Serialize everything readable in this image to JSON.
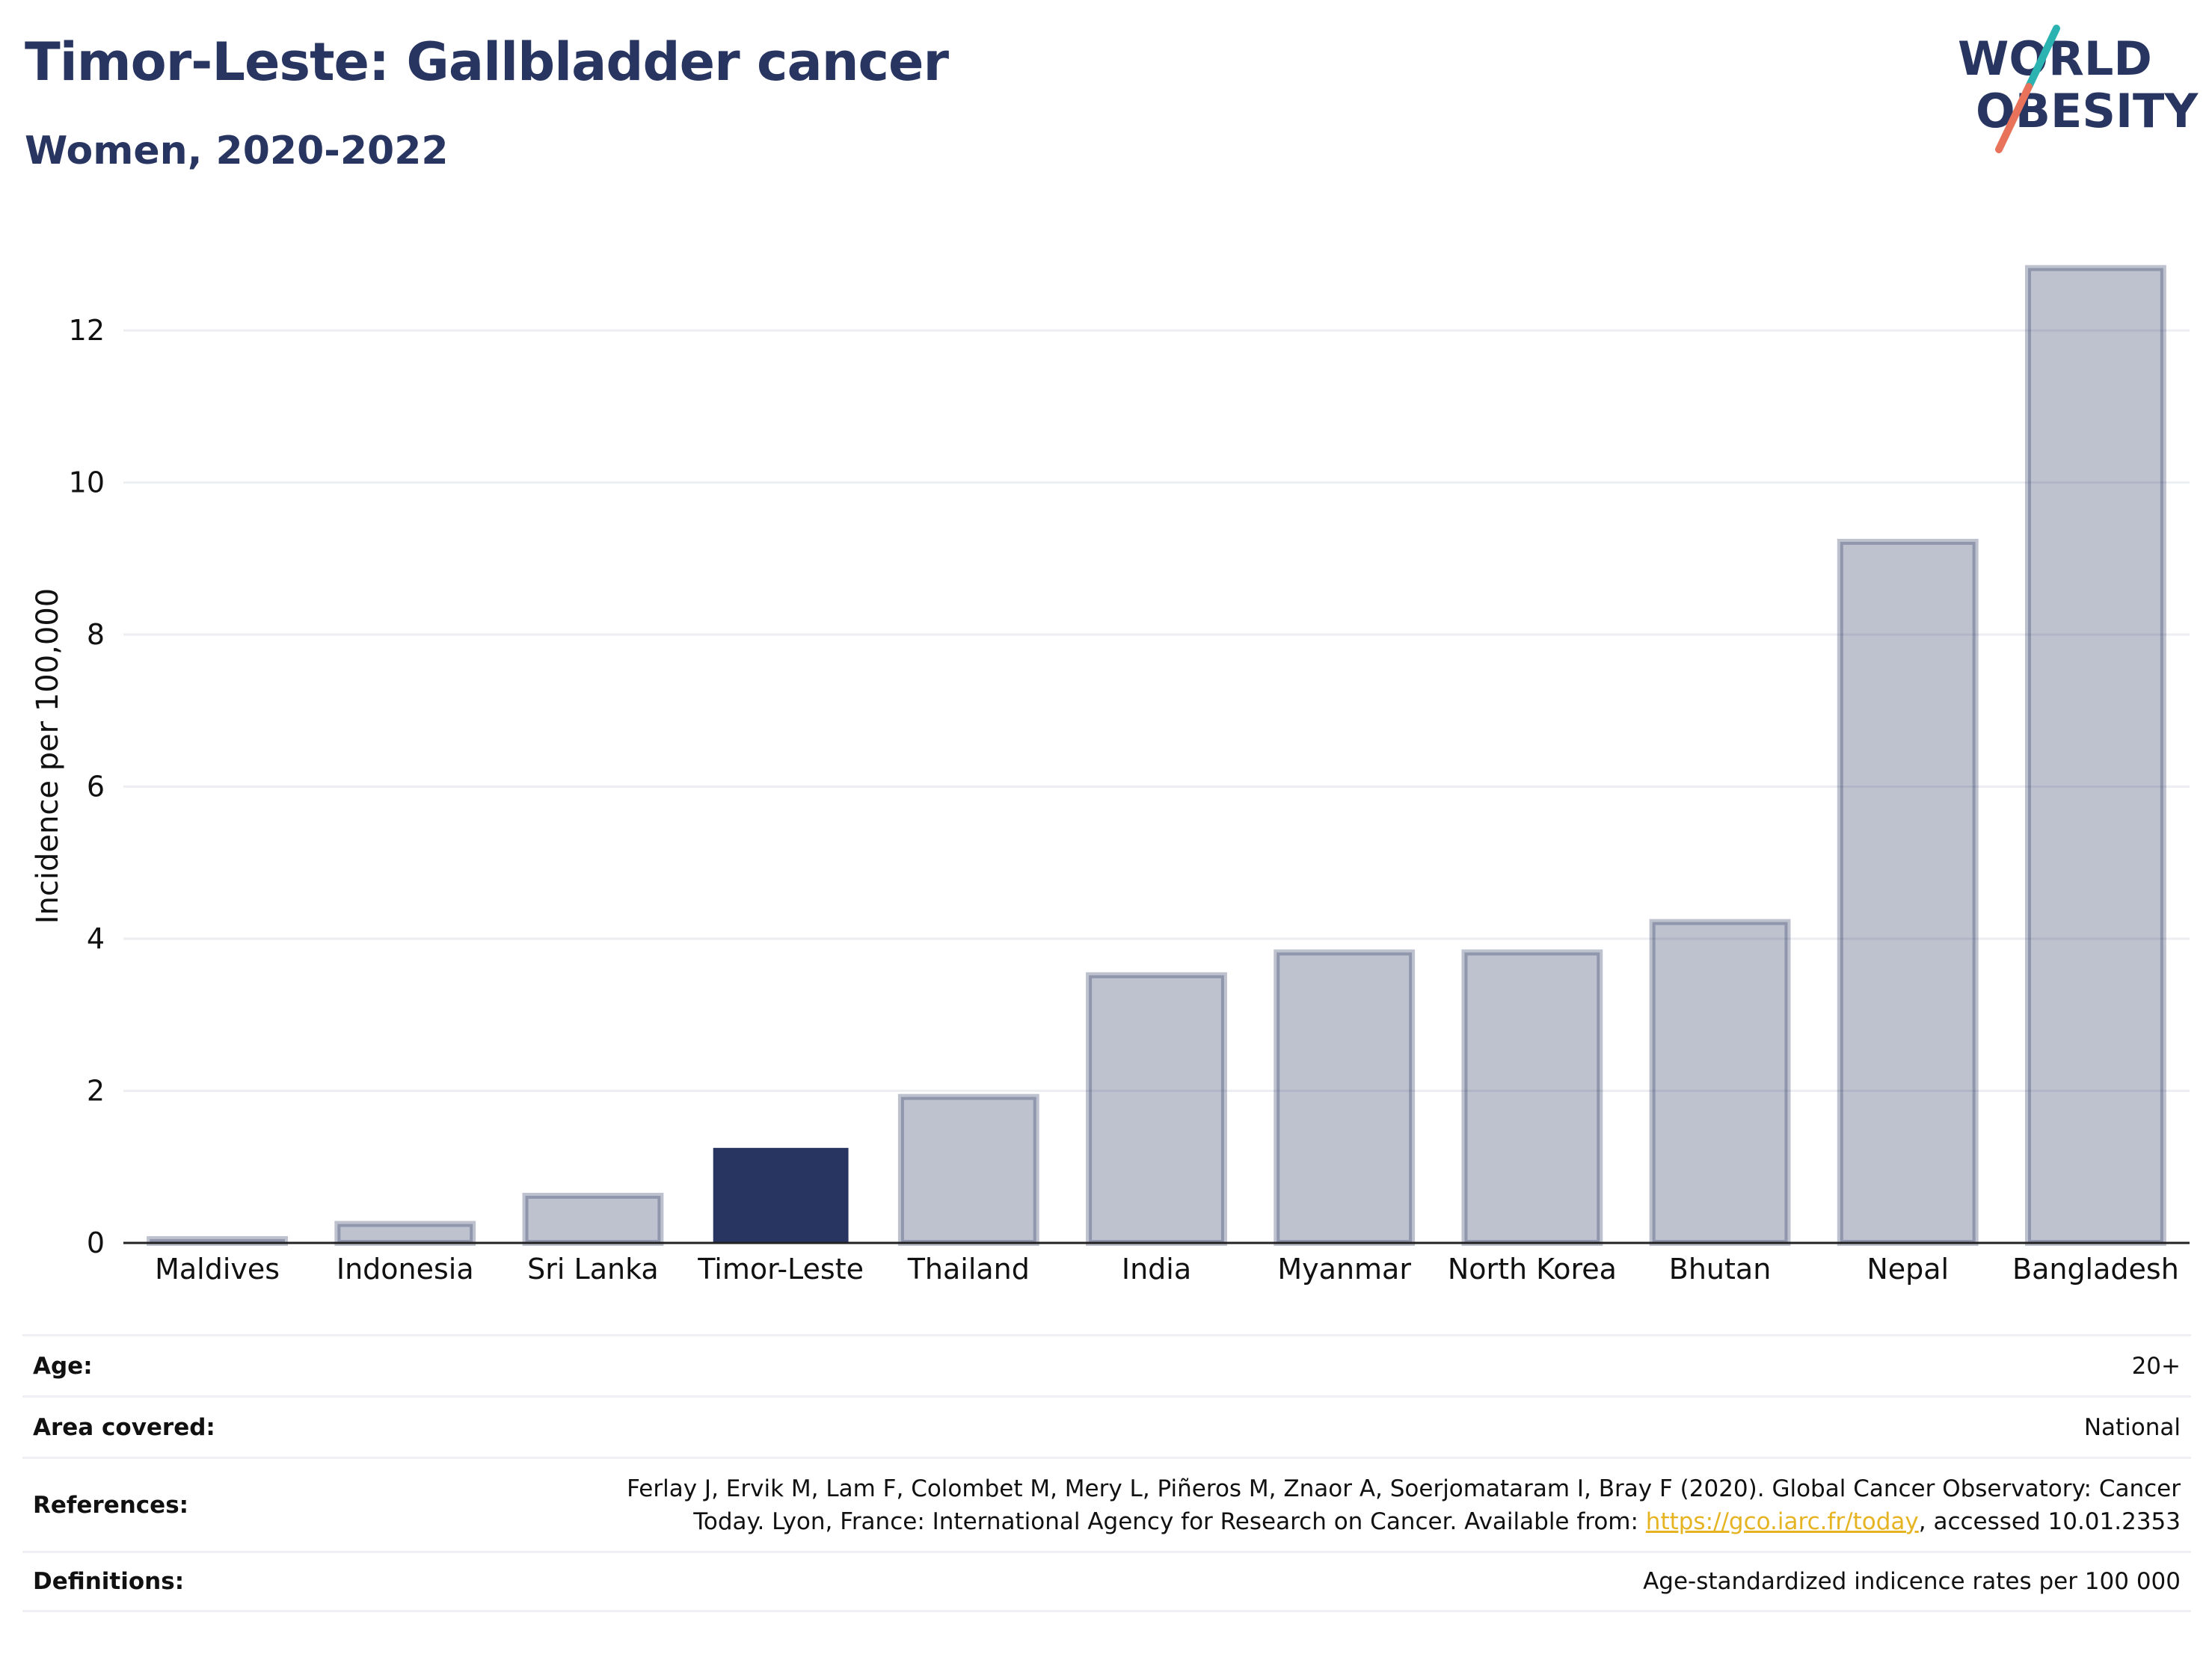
{
  "header": {
    "title": "Timor-Leste: Gallbladder cancer",
    "subtitle": "Women, 2020-2022"
  },
  "logo": {
    "line1": "WORLD",
    "line2": "OBESITY"
  },
  "chart_data": {
    "type": "bar",
    "categories": [
      "Maldives",
      "Indonesia",
      "Sri Lanka",
      "Timor-Leste",
      "Thailand",
      "India",
      "Myanmar",
      "North Korea",
      "Bhutan",
      "Nepal",
      "Bangladesh"
    ],
    "values": [
      0.05,
      0.25,
      0.62,
      1.25,
      1.92,
      3.52,
      3.82,
      3.82,
      4.22,
      9.22,
      12.82
    ],
    "highlight": "Timor-Leste",
    "ylabel": "Incidence per 100,000",
    "xlabel": "",
    "ylim": [
      0,
      13.2
    ],
    "yticks": [
      0,
      2,
      4,
      6,
      8,
      10,
      12
    ],
    "grid": true,
    "colors": {
      "bar": "#283561",
      "highlight": "#283561",
      "grid": "#eceef2"
    }
  },
  "meta": [
    {
      "key": "Age:",
      "value": "20+"
    },
    {
      "key": "Area covered:",
      "value": "National"
    },
    {
      "key": "References:",
      "value_lines": [
        "Ferlay J, Ervik M, Lam F, Colombet M, Mery L, Piñeros M, Znaor A, Soerjomataram I, Bray F (2020). Global Cancer Observatory: Cancer",
        "Today. Lyon, France: International Agency for Research on Cancer. Available from: "
      ],
      "link": "https://gco.iarc.fr/today",
      "suffix": ", accessed 10.01.2353"
    },
    {
      "key": "Definitions:",
      "value": "Age-standardized indicence rates per 100 000"
    }
  ]
}
